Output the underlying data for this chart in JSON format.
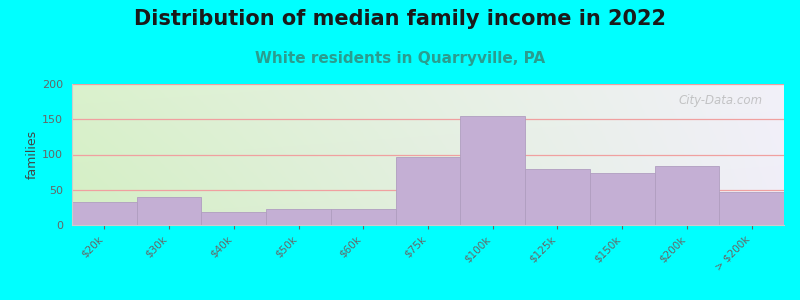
{
  "title": "Distribution of median family income in 2022",
  "subtitle": "White residents in Quarryville, PA",
  "ylabel": "families",
  "background_color": "#00ffff",
  "bar_color": "#c4afd4",
  "bar_edge_color": "#b09ec0",
  "categories": [
    "$20k",
    "$30k",
    "$40k",
    "$50k",
    "$60k",
    "$75k",
    "$100k",
    "$125k",
    "$150k",
    "$200k",
    "> $200k"
  ],
  "values": [
    32,
    40,
    18,
    22,
    23,
    97,
    155,
    80,
    74,
    83,
    47
  ],
  "ylim": [
    0,
    200
  ],
  "yticks": [
    0,
    50,
    100,
    150,
    200
  ],
  "title_fontsize": 15,
  "subtitle_fontsize": 11,
  "subtitle_color": "#2a9d8f",
  "watermark": "City-Data.com",
  "grid_color": "#f0a0a0",
  "bg_left_color": "#d4efc4",
  "bg_right_color": "#f0f0f8",
  "bg_top_color": "#f8f8ff"
}
